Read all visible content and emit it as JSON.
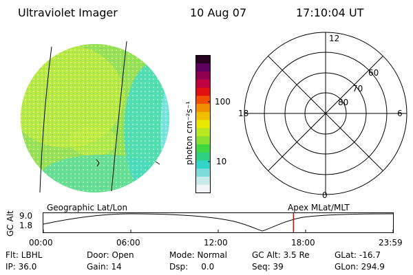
{
  "header": {
    "instrument": "Ultraviolet Imager",
    "date": "10 Aug 07",
    "time": "17:10:04 UT"
  },
  "colorbar": {
    "label": "photon cm⁻²s⁻¹",
    "ticks": [
      "100",
      "10"
    ],
    "colors": [
      "#f0f4f4",
      "#c8eaea",
      "#7fdcdc",
      "#30d6c8",
      "#2cd080",
      "#40d840",
      "#88e030",
      "#b8e820",
      "#e8e800",
      "#f0c000",
      "#f09000",
      "#f05000",
      "#e01010",
      "#c00040",
      "#900050",
      "#600060",
      "#280020"
    ]
  },
  "polar_plot": {
    "clock_labels": [
      "12",
      "6",
      "0",
      "18"
    ],
    "lat_labels": [
      "60",
      "70",
      "80"
    ]
  },
  "image_colors": {
    "base": "#9ae050",
    "light": "#c6ec3a",
    "teal": "#48dcc0",
    "cyan": "#80e6e0"
  },
  "altitude_panel": {
    "ylabel": "GC Alt",
    "yticks": [
      "9.0",
      "1.8"
    ],
    "left_title": "Geographic Lat/Lon",
    "right_title": "Apex MLat/MLT",
    "xticks": [
      "00:00",
      "06:00",
      "12:00",
      "18:00",
      "23:59"
    ],
    "marker_time": "17:10",
    "marker_color": "#e00000"
  },
  "info": {
    "flt": "Flt: LBHL",
    "ip": "IP: 36.0",
    "door": "Door: Open",
    "gain": "Gain: 14",
    "mode": "Mode: Normal",
    "dsp": "Dsp:     0.0",
    "gcalt": "GC Alt: 3.5 Re",
    "seq": "Seq: 39",
    "glat": "GLat: -16.7",
    "glon": "GLon: 294.9"
  }
}
